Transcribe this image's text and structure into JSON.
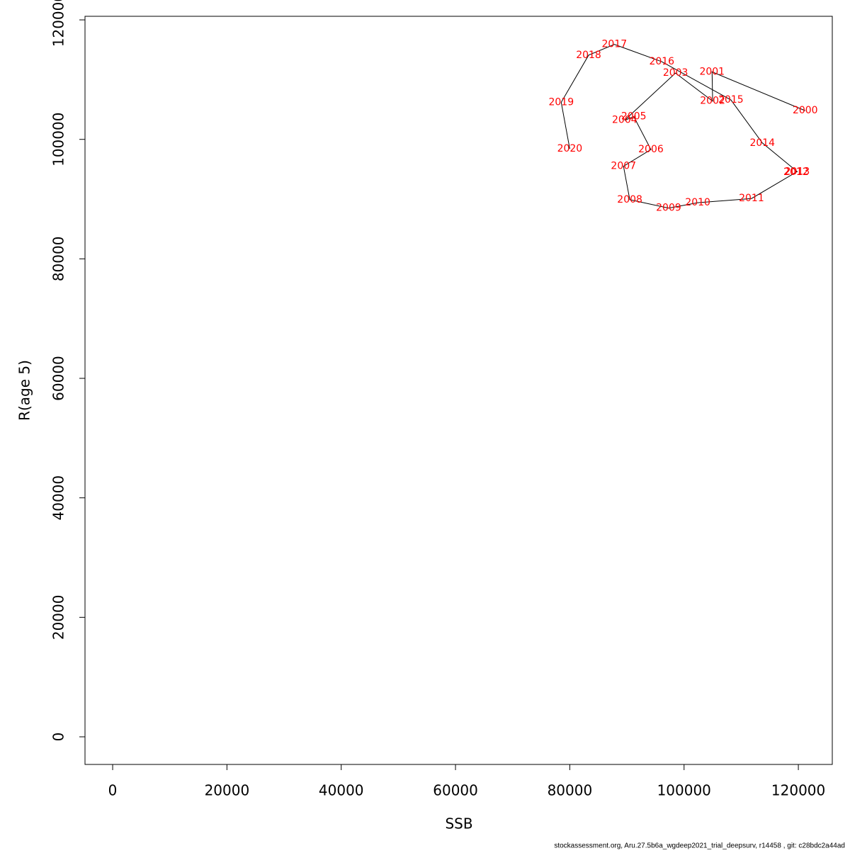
{
  "chart_data": {
    "type": "line",
    "x_label": "SSB",
    "y_label": "R(age 5)",
    "x": [
      121200,
      104900,
      105000,
      98500,
      89600,
      91200,
      94200,
      89400,
      90500,
      97300,
      102400,
      111800,
      119600,
      119800,
      113700,
      108200,
      96100,
      87800,
      83300,
      78500,
      80000
    ],
    "values": [
      104800,
      111300,
      106400,
      111100,
      103200,
      103800,
      98300,
      95500,
      89900,
      88500,
      89400,
      90100,
      94500,
      94600,
      99400,
      106600,
      113000,
      115900,
      114100,
      106200,
      98400
    ],
    "point_labels": [
      "2000",
      "2001",
      "2002",
      "2003",
      "2004",
      "2005",
      "2006",
      "2007",
      "2008",
      "2009",
      "2010",
      "2011",
      "2012",
      "2013",
      "2014",
      "2015",
      "2016",
      "2017",
      "2018",
      "2019",
      "2020"
    ],
    "line_color": "#000000",
    "label_color": "#ff0000",
    "xlim": [
      -4840,
      125940
    ],
    "ylim": [
      -4625,
      120600
    ],
    "xticks": [
      0,
      20000,
      40000,
      60000,
      80000,
      100000,
      120000
    ],
    "yticks": [
      0,
      20000,
      40000,
      60000,
      80000,
      100000,
      120000
    ],
    "grid": false,
    "footer": "stockassessment.org, Aru.27.5b6a_wgdeep2021_trial_deepsurv, r14458 , git: c28bdc2a44ad"
  }
}
